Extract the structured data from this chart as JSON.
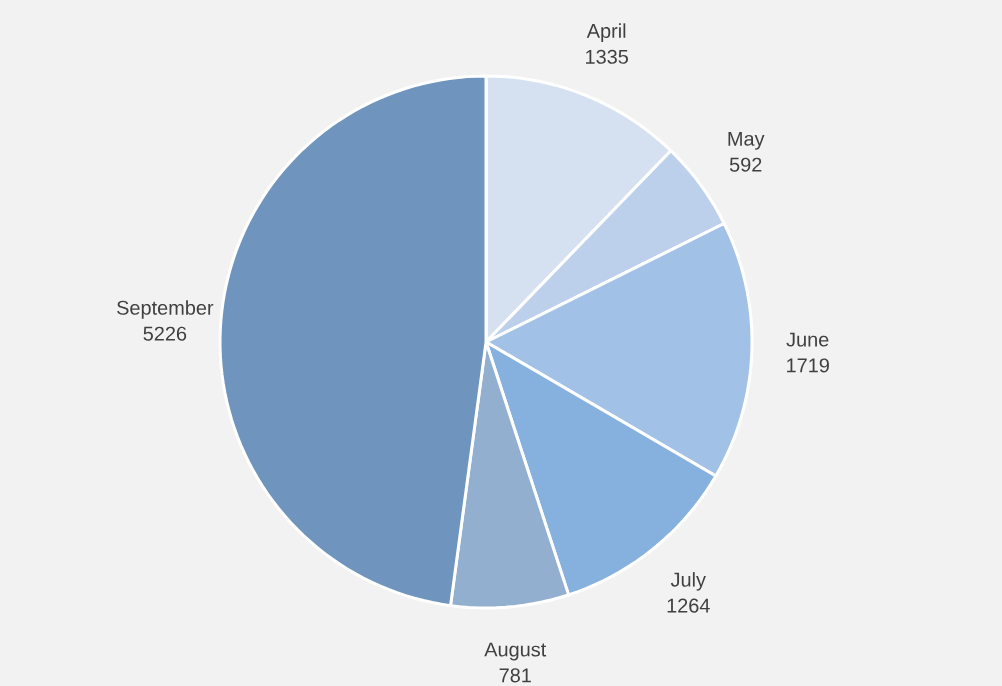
{
  "chart_data": {
    "type": "pie",
    "categories": [
      "April",
      "May",
      "June",
      "July",
      "August",
      "September"
    ],
    "values": [
      1335,
      592,
      1719,
      1264,
      781,
      5226
    ],
    "colors": [
      "#d5e1f1",
      "#bcd0ec",
      "#a2c1e7",
      "#86b1df",
      "#93afcf",
      "#6f94bd"
    ],
    "data_labels": true
  }
}
